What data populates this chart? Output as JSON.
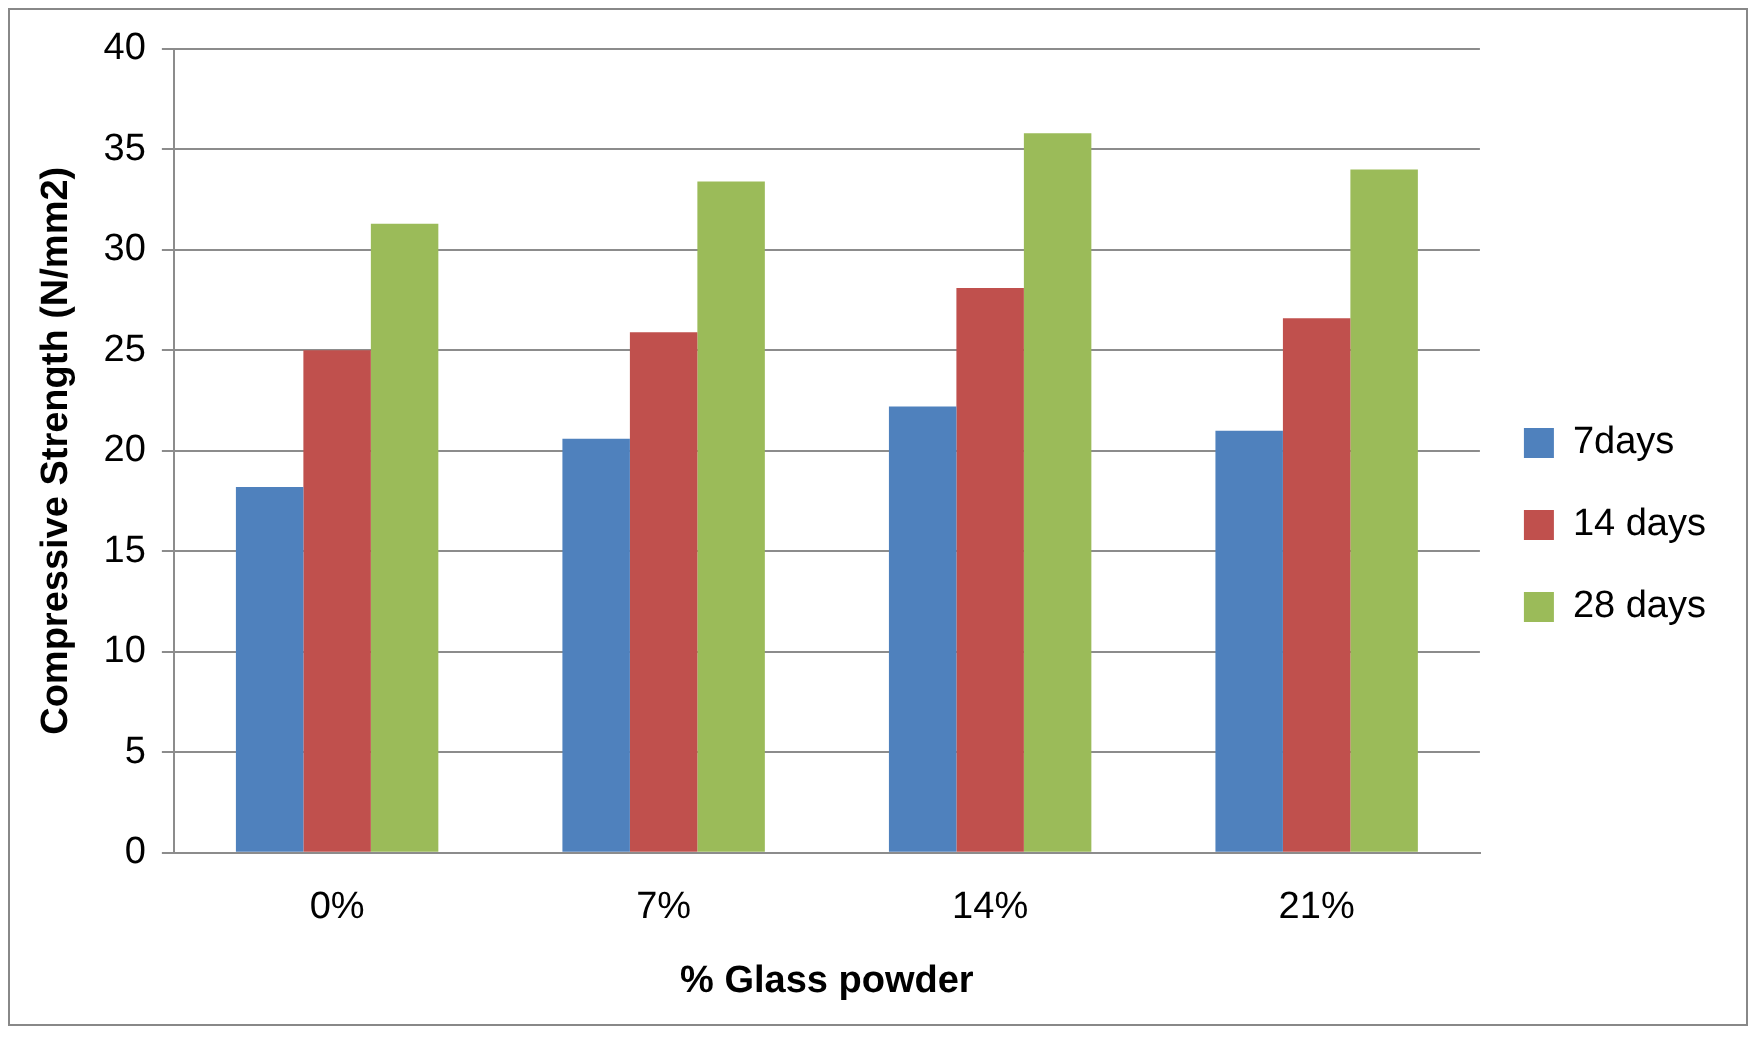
{
  "chart_data": {
    "type": "bar",
    "xlabel": "% Glass powder",
    "ylabel": "Compressive Strength (N/mm2)",
    "categories": [
      "0%",
      "7%",
      "14%",
      "21%"
    ],
    "series": [
      {
        "name": "7days",
        "color": "#4f81bd",
        "values": [
          18.2,
          20.6,
          22.2,
          21.0
        ]
      },
      {
        "name": "14 days",
        "color": "#c0504d",
        "values": [
          25.0,
          25.9,
          28.1,
          26.6
        ]
      },
      {
        "name": "28 days",
        "color": "#9bbb59",
        "values": [
          31.3,
          33.4,
          35.8,
          34.0
        ]
      }
    ],
    "ylim": [
      0,
      40
    ],
    "yticks": [
      0,
      5,
      10,
      15,
      20,
      25,
      30,
      35,
      40
    ],
    "grid": "y",
    "legend": "right"
  }
}
